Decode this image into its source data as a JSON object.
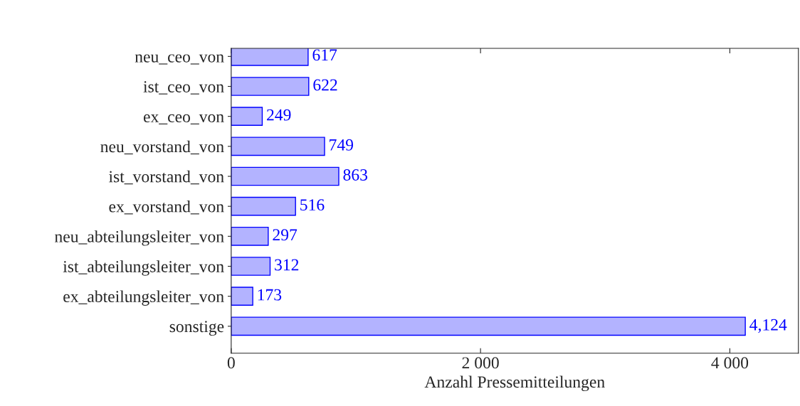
{
  "chart_data": {
    "type": "bar",
    "orientation": "horizontal",
    "xlabel": "Anzahl Pressemitteilungen",
    "categories": [
      "neu_ceo_von",
      "ist_ceo_von",
      "ex_ceo_von",
      "neu_vorstand_von",
      "ist_vorstand_von",
      "ex_vorstand_von",
      "neu_abteilungsleiter_von",
      "ist_abteilungsleiter_von",
      "ex_abteilungsleiter_von",
      "sonstige"
    ],
    "values": [
      617,
      622,
      249,
      749,
      863,
      516,
      297,
      312,
      173,
      4124
    ],
    "value_labels": [
      "617",
      "622",
      "249",
      "749",
      "863",
      "516",
      "297",
      "312",
      "173",
      "4,124"
    ],
    "color": "#b3b3ff",
    "xlim": [
      0,
      4550
    ],
    "xticks": [
      0,
      {
        "value": 2000,
        "label": "2 000"
      },
      {
        "value": 4000,
        "label": "4 000"
      }
    ],
    "grid": false,
    "legend": false
  }
}
